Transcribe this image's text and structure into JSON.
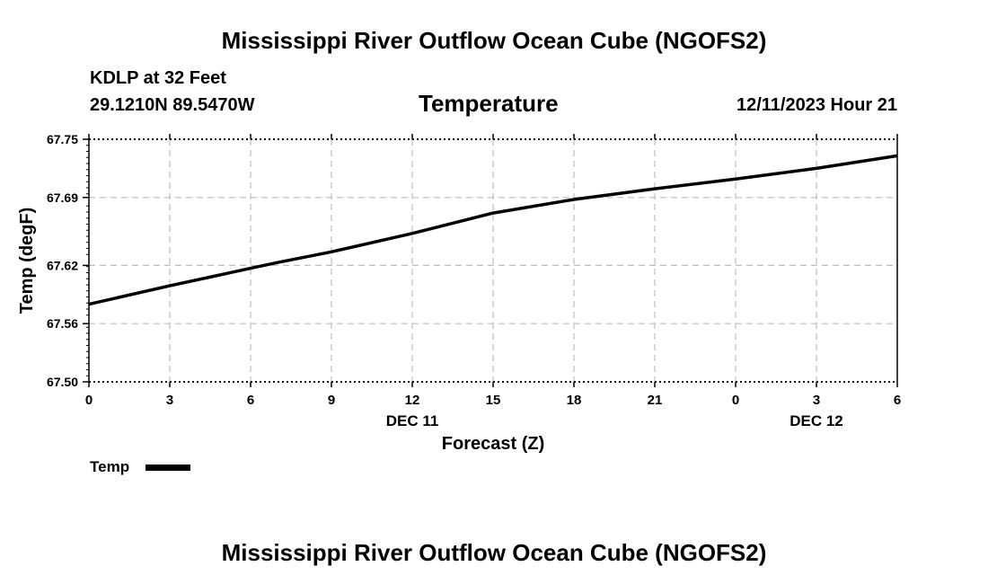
{
  "page": {
    "title_top": "Mississippi River Outflow Ocean Cube (NGOFS2)",
    "title_bottom": "Mississippi River Outflow Ocean Cube (NGOFS2)",
    "station": "KDLP at 32 Feet",
    "coords": "29.1210N  89.5470W",
    "variable": "Temperature",
    "datetime": "12/11/2023 Hour 21"
  },
  "chart_data": {
    "type": "line",
    "xlabel": "Forecast (Z)",
    "ylabel": "Temp (degF)",
    "x_ticks": [
      "0",
      "3",
      "6",
      "9",
      "12",
      "15",
      "18",
      "21",
      "0",
      "3",
      "6"
    ],
    "x_date_labels": [
      {
        "label": "DEC 11",
        "at_hour": 12
      },
      {
        "label": "DEC 12",
        "at_hour": 27
      }
    ],
    "y_ticks": [
      "67.50",
      "67.56",
      "67.62",
      "67.69",
      "67.75"
    ],
    "ylim": [
      67.5,
      67.75
    ],
    "xlim_hours": [
      0,
      30
    ],
    "grid": true,
    "legend_position": "bottom-left",
    "series": [
      {
        "name": "Temp",
        "color": "#000000",
        "x_hours": [
          0,
          3,
          6,
          7,
          9,
          12,
          15,
          18,
          21,
          24,
          27,
          30
        ],
        "values": [
          67.58,
          67.599,
          67.617,
          67.623,
          67.634,
          67.653,
          67.674,
          67.688,
          67.699,
          67.709,
          67.72,
          67.733
        ]
      }
    ]
  }
}
